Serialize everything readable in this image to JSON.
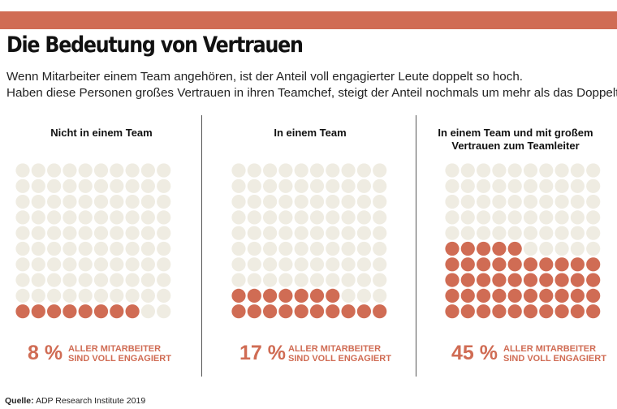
{
  "header": {
    "title": "Die Bedeutung von Vertrauen",
    "subtitle_line1": "Wenn Mitarbeiter einem Team angehören, ist der Anteil voll engagierter Leute doppelt so hoch.",
    "subtitle_line2": "Haben diese Personen großes Vertrauen in ihren Teamchef, steigt der Anteil nochmals um mehr als das Doppelte an."
  },
  "colors": {
    "accent": "#d06c54",
    "empty_dot": "#efece2",
    "divider": "#555555"
  },
  "chart_data": {
    "type": "waffle",
    "grid": {
      "columns": 10,
      "rows": 10,
      "total": 100,
      "fill_order": "bottom-up, left-to-right"
    },
    "series": [
      {
        "title": "Nicht in einem Team",
        "value": 8,
        "value_label": "8 %",
        "stat_line1": "ALLER MITARBEITER",
        "stat_line2": "SIND VOLL ENGAGIERT"
      },
      {
        "title": "In einem Team",
        "value": 17,
        "value_label": "17 %",
        "stat_line1": "ALLER MITARBEITER",
        "stat_line2": "SIND VOLL ENGAGIERT"
      },
      {
        "title_line1": "In einem Team und mit großem",
        "title_line2": "Vertrauen zum Teamleiter",
        "value": 45,
        "value_label": "45 %",
        "stat_line1": "ALLER MITARBEITER",
        "stat_line2": "SIND VOLL ENGAGIERT"
      }
    ]
  },
  "footer": {
    "source_label": "Quelle:",
    "source_text": "ADP Research Institute 2019"
  }
}
